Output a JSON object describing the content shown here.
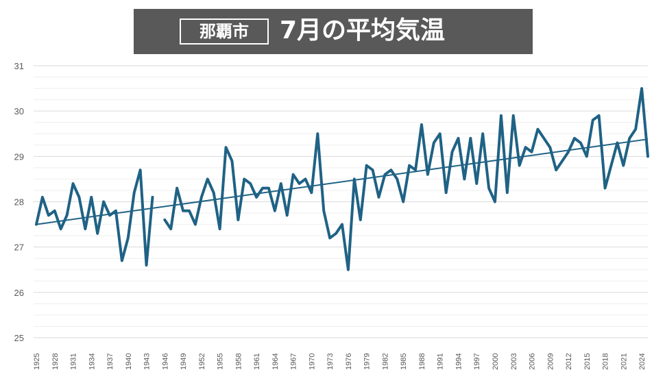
{
  "title_box": "那覇市",
  "title_main": "7月の平均気温",
  "colors": {
    "banner": "#595959",
    "line": "#1f6285",
    "trend": "#1f6285",
    "grid_major": "#d9d9d9",
    "grid_minor": "#eeeeee",
    "tick_text": "#595959"
  },
  "chart_data": {
    "type": "line",
    "title": "7月の平均気温",
    "subtitle": "那覇市",
    "xlabel": "",
    "ylabel": "",
    "ylim": [
      25,
      31
    ],
    "yticks": [
      "25",
      "26",
      "27",
      "28",
      "29",
      "30",
      "31"
    ],
    "x_start": 1925,
    "x_end": 2025,
    "xtick_step": 3,
    "grid": true,
    "series": [
      {
        "values": [
          27.5,
          28.1,
          27.7,
          27.8,
          27.4,
          27.7,
          28.4,
          28.1,
          27.4,
          28.1,
          27.3,
          28.0,
          27.7,
          27.8,
          26.7,
          27.2,
          28.2,
          28.7,
          26.6,
          28.1,
          null,
          27.6,
          27.4,
          28.3,
          27.8,
          27.8,
          27.5,
          28.1,
          28.5,
          28.2,
          27.4,
          29.2,
          28.9,
          27.6,
          28.5,
          28.4,
          28.1,
          28.3,
          28.3,
          27.8,
          28.4,
          27.7,
          28.6,
          28.4,
          28.5,
          28.2,
          29.5,
          27.8,
          27.2,
          27.3,
          27.5,
          26.5,
          28.5,
          27.6,
          28.8,
          28.7,
          28.1,
          28.6,
          28.7,
          28.5,
          28.0,
          28.8,
          28.7,
          29.7,
          28.6,
          29.3,
          29.5,
          28.2,
          29.1,
          29.4,
          28.5,
          29.4,
          28.4,
          29.5,
          28.3,
          28.0,
          29.9,
          28.2,
          29.9,
          28.8,
          29.2,
          29.1,
          29.6,
          29.4,
          29.2,
          28.7,
          28.9,
          29.1,
          29.4,
          29.3,
          29.0,
          29.8,
          29.9,
          28.3,
          28.8,
          29.3,
          28.8,
          29.4,
          29.6,
          30.5,
          29.0
        ]
      }
    ],
    "trendline": {
      "start": 27.5,
      "end": 29.38
    }
  }
}
